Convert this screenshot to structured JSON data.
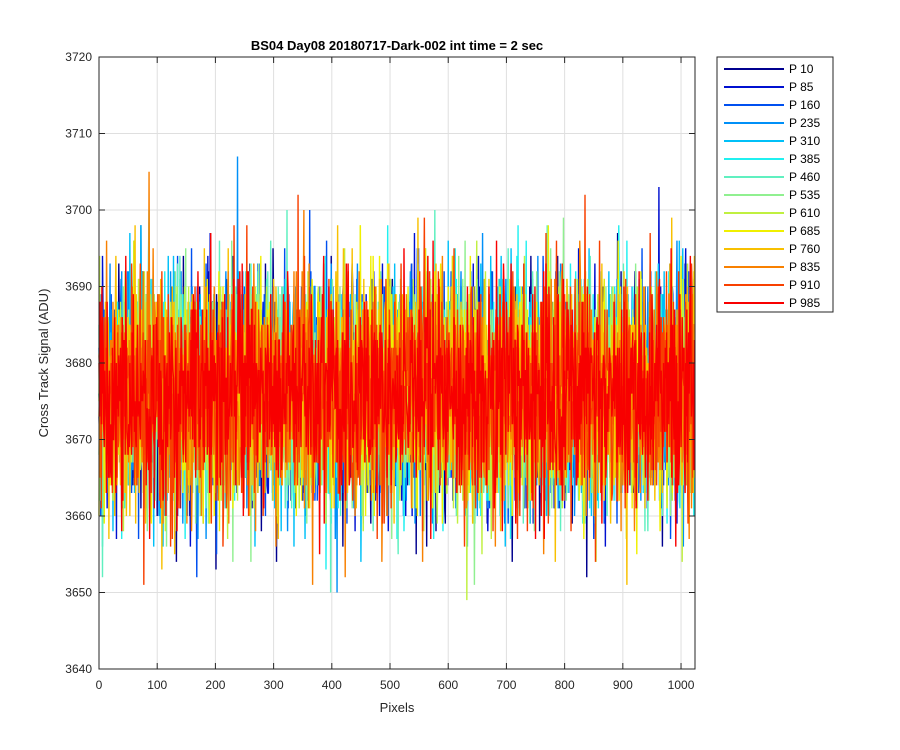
{
  "chart_data": {
    "type": "line",
    "title": "BS04 Day08 20180717-Dark-002 int time = 2 sec",
    "xlabel": "Pixels",
    "ylabel": "Cross Track Signal (ADU)",
    "xlim": [
      0,
      1024
    ],
    "ylim": [
      3640,
      3720
    ],
    "xticks": [
      0,
      100,
      200,
      300,
      400,
      500,
      600,
      700,
      800,
      900,
      1000
    ],
    "yticks": [
      3640,
      3650,
      3660,
      3670,
      3680,
      3690,
      3700,
      3710,
      3720
    ],
    "grid": true,
    "legend_position": "outside-right",
    "signal_model": {
      "mean": 3676,
      "std": 7.5,
      "points_per_series": 1024
    },
    "series": [
      {
        "name": "P 10",
        "color": "#00008F"
      },
      {
        "name": "P 85",
        "color": "#0010D0"
      },
      {
        "name": "P 160",
        "color": "#0050F0"
      },
      {
        "name": "P 235",
        "color": "#0090F8"
      },
      {
        "name": "P 310",
        "color": "#00C0F8"
      },
      {
        "name": "P 385",
        "color": "#20F0F0"
      },
      {
        "name": "P 460",
        "color": "#60F0C0"
      },
      {
        "name": "P 535",
        "color": "#90F090"
      },
      {
        "name": "P 610",
        "color": "#C0F040"
      },
      {
        "name": "P 685",
        "color": "#F0F000"
      },
      {
        "name": "P 760",
        "color": "#F8C000"
      },
      {
        "name": "P 835",
        "color": "#F88000"
      },
      {
        "name": "P 910",
        "color": "#F84000"
      },
      {
        "name": "P 985",
        "color": "#F80000"
      }
    ]
  }
}
